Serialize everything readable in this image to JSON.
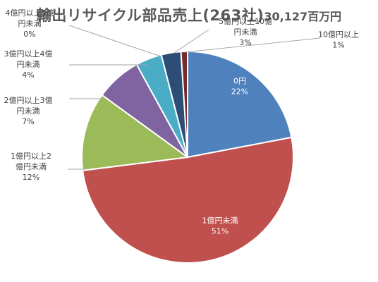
{
  "chart_data": {
    "type": "pie",
    "title": "輸出リサイクル部品売上(263社)",
    "subtitle": "30,127百万円",
    "categories": [
      "0円",
      "1億円未満",
      "1億円以上2億円未満",
      "2億円以上3億円未満",
      "3億円以上4億円未満",
      "4億円以上5億円未満",
      "5億円以上10億円未満",
      "10億円以上"
    ],
    "label_lines": [
      [
        "0円"
      ],
      [
        "1億円未満"
      ],
      [
        "1億円以上2",
        "億円未満"
      ],
      [
        "2億円以上3億",
        "円未満"
      ],
      [
        "3億円以上4億",
        "円未満"
      ],
      [
        "4億円以上5億",
        "円未満"
      ],
      [
        "5億円以上10億",
        "円未満"
      ],
      [
        "10億円以上"
      ]
    ],
    "values": [
      22,
      51,
      12,
      7,
      4,
      0,
      3,
      1
    ],
    "percent_labels": [
      "22%",
      "51%",
      "12%",
      "7%",
      "4%",
      "0%",
      "3%",
      "1%"
    ],
    "colors": [
      "#4f81bd",
      "#c0504d",
      "#9bbb59",
      "#8064a2",
      "#4bacc6",
      "#f79646",
      "#2c4d75",
      "#772c2a"
    ],
    "legend": "none"
  }
}
